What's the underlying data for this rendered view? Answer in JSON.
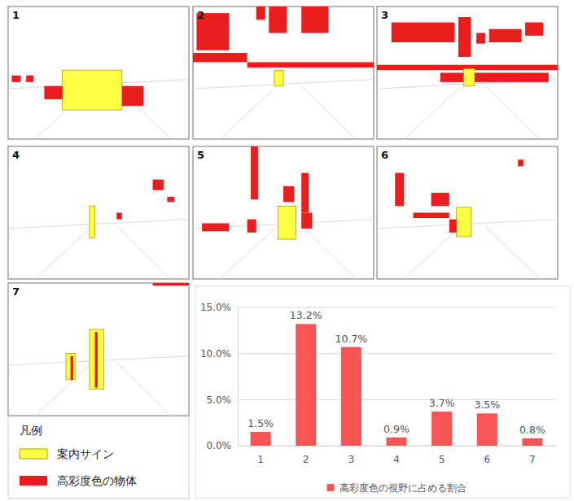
{
  "chart_data": {
    "type": "bar",
    "categories": [
      "1",
      "2",
      "3",
      "4",
      "5",
      "6",
      "7"
    ],
    "series": [
      {
        "name": "高彩度色の視野に占める割合",
        "color": "#f75555",
        "values": [
          1.5,
          13.2,
          10.7,
          0.9,
          3.7,
          3.5,
          0.8
        ],
        "value_labels": [
          "1.5%",
          "13.2%",
          "10.7%",
          "0.9%",
          "3.7%",
          "3.5%",
          "0.8%"
        ]
      }
    ],
    "ylim": [
      0,
      15
    ],
    "yticks": [
      {
        "value": 0,
        "label": "0.0%"
      },
      {
        "value": 5,
        "label": "5.0%"
      },
      {
        "value": 10,
        "label": "10.0%"
      },
      {
        "value": 15,
        "label": "15.0%"
      }
    ],
    "grid": true,
    "data_labels": true,
    "legend": "bottom"
  },
  "panels": [
    {
      "label": "1"
    },
    {
      "label": "2"
    },
    {
      "label": "3"
    },
    {
      "label": "4"
    },
    {
      "label": "5"
    },
    {
      "label": "6"
    },
    {
      "label": "7"
    }
  ],
  "legend_box": {
    "title": "凡例",
    "items": [
      {
        "label": "案内サイン",
        "color": "#ffff44"
      },
      {
        "label": "高彩度色の物体",
        "color": "#e81e1e"
      }
    ]
  }
}
